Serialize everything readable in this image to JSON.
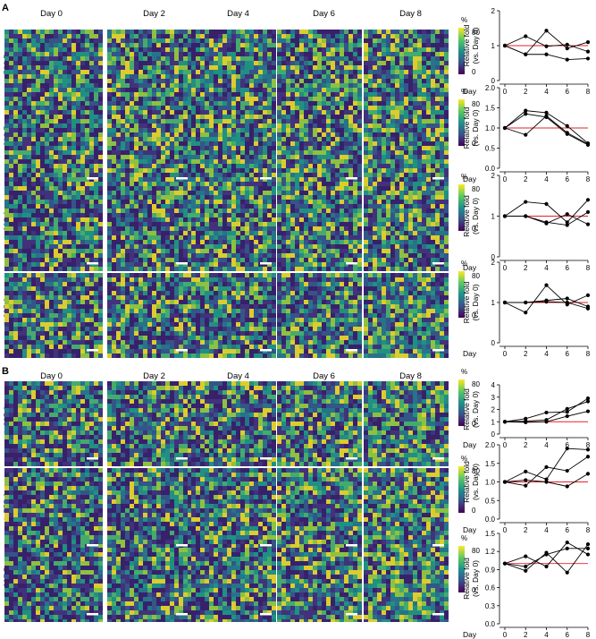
{
  "panels": [
    {
      "label": "A",
      "day_headers": [
        "Day 0",
        "Day 2",
        "Day 4",
        "Day 6",
        "Day 8"
      ],
      "rows": [
        {
          "mz": "766.5",
          "colorbar": {
            "unit": "%",
            "max_label": "80",
            "min_label": "0"
          }
        },
        {
          "mz": "810.5",
          "colorbar": {
            "unit": "%",
            "max_label": "80",
            "min_label": "0"
          }
        },
        {
          "mz": "838.6",
          "colorbar": {
            "unit": "%",
            "max_label": "80",
            "min_label": "0"
          }
        },
        {
          "mz": "885.6",
          "colorbar": {
            "unit": "%",
            "max_label": "80",
            "min_label": "0"
          }
        }
      ]
    },
    {
      "label": "B",
      "day_headers": [
        "Day 0",
        "Day 2",
        "Day 4",
        "Day 6",
        "Day 8"
      ],
      "rows": [
        {
          "mz": "865.6",
          "colorbar": {
            "unit": "%",
            "max_label": "80",
            "min_label": "0"
          }
        },
        {
          "mz": "775.6",
          "colorbar": {
            "unit": "%",
            "max_label": "80",
            "min_label": "0"
          }
        },
        {
          "mz": "837.5",
          "colorbar": {
            "unit": "%",
            "max_label": "80",
            "min_label": "0"
          }
        }
      ]
    }
  ],
  "mz_prefix": "m/z",
  "colors": {
    "viridis_dark": "#440154",
    "viridis_mid": "#21918c",
    "viridis_bright": "#fde725",
    "reference_line": "#e8202a",
    "series": "#000000"
  },
  "chart_data": [
    {
      "type": "line",
      "panel": "A",
      "mz": "766.5",
      "ylabel": "Relative fold (vs. Day 0)",
      "xlabel": "Day",
      "x": [
        0,
        2,
        4,
        6,
        8
      ],
      "ylim": [
        0,
        2
      ],
      "yticks": [
        "0",
        "1",
        "2"
      ],
      "xticks": [
        "0",
        "2",
        "4",
        "6",
        "8"
      ],
      "reference_y": 1,
      "series": [
        {
          "values": [
            1,
            1.27,
            0.98,
            1.03,
            0.83
          ]
        },
        {
          "values": [
            1,
            0.75,
            1.43,
            0.92,
            1.1
          ]
        },
        {
          "values": [
            1,
            0.75,
            0.75,
            0.6,
            0.63
          ]
        }
      ]
    },
    {
      "type": "line",
      "panel": "A",
      "mz": "810.5",
      "ylabel": "Relative fold (vs. Day 0)",
      "xlabel": "Day",
      "x": [
        0,
        2,
        4,
        6,
        8
      ],
      "ylim": [
        0,
        2
      ],
      "yticks": [
        "0.0",
        "0.5",
        "1.0",
        "1.5",
        "2.0"
      ],
      "xticks": [
        "0",
        "2",
        "4",
        "6",
        "8"
      ],
      "reference_y": 1,
      "series": [
        {
          "values": [
            1,
            1.43,
            1.38,
            1.05,
            0.62
          ]
        },
        {
          "values": [
            1,
            1.35,
            1.27,
            0.85,
            0.58
          ]
        },
        {
          "values": [
            1,
            0.83,
            1.3,
            0.88,
            0.6
          ]
        }
      ]
    },
    {
      "type": "line",
      "panel": "A",
      "mz": "838.6",
      "ylabel": "Relative fold (vs. Day 0)",
      "xlabel": "Day",
      "x": [
        0,
        2,
        4,
        6,
        8
      ],
      "ylim": [
        0,
        2
      ],
      "yticks": [
        "0",
        "1",
        "2"
      ],
      "xticks": [
        "0",
        "2",
        "4",
        "6",
        "8"
      ],
      "reference_y": 1,
      "series": [
        {
          "values": [
            1,
            1.35,
            1.3,
            0.85,
            1.4
          ]
        },
        {
          "values": [
            1,
            1.0,
            0.82,
            1.05,
            0.8
          ]
        },
        {
          "values": [
            1,
            1.0,
            0.85,
            0.78,
            1.1
          ]
        }
      ]
    },
    {
      "type": "line",
      "panel": "A",
      "mz": "885.6",
      "ylabel": "Relative fold (vs. Day 0)",
      "xlabel": "Day",
      "x": [
        0,
        2,
        4,
        6,
        8
      ],
      "ylim": [
        0,
        2
      ],
      "yticks": [
        "0",
        "1",
        "2"
      ],
      "xticks": [
        "0",
        "2",
        "4",
        "6",
        "8"
      ],
      "reference_y": 1,
      "series": [
        {
          "values": [
            1,
            0.75,
            1.43,
            0.95,
            1.18
          ]
        },
        {
          "values": [
            1,
            1.0,
            1.05,
            1.1,
            0.9
          ]
        },
        {
          "values": [
            1,
            1.0,
            1.02,
            1.0,
            0.85
          ]
        }
      ]
    },
    {
      "type": "line",
      "panel": "B",
      "mz": "865.6",
      "ylabel": "Relative fold (vs. Day 0)",
      "xlabel": "Day",
      "x": [
        0,
        2,
        4,
        6,
        8
      ],
      "ylim": [
        0,
        4
      ],
      "yticks": [
        "0",
        "1",
        "2",
        "3",
        "4"
      ],
      "xticks": [
        "0",
        "2",
        "4",
        "6",
        "8"
      ],
      "reference_y": 1,
      "series": [
        {
          "values": [
            1,
            1.25,
            1.75,
            1.8,
            2.9
          ]
        },
        {
          "values": [
            1,
            1.05,
            1.15,
            2.05,
            2.65
          ]
        },
        {
          "values": [
            1,
            0.95,
            1.0,
            1.45,
            1.85
          ]
        }
      ]
    },
    {
      "type": "line",
      "panel": "B",
      "mz": "775.6",
      "ylabel": "Relative fold (vs. Day 0)",
      "xlabel": "Day",
      "x": [
        0,
        2,
        4,
        6,
        8
      ],
      "ylim": [
        0,
        2
      ],
      "yticks": [
        "0.0",
        "0.5",
        "1.0",
        "1.5",
        "2.0"
      ],
      "xticks": [
        "0",
        "2",
        "4",
        "6",
        "8"
      ],
      "reference_y": 1,
      "series": [
        {
          "values": [
            1,
            1.28,
            1.07,
            1.9,
            1.87
          ]
        },
        {
          "values": [
            1,
            0.9,
            1.4,
            1.3,
            1.68
          ]
        },
        {
          "values": [
            1,
            1.05,
            1.0,
            0.88,
            1.22
          ]
        }
      ]
    },
    {
      "type": "line",
      "panel": "B",
      "mz": "837.5",
      "ylabel": "Relative fold (vs. Day 0)",
      "xlabel": "Day",
      "x": [
        0,
        2,
        4,
        6,
        8
      ],
      "ylim": [
        0,
        1.5
      ],
      "yticks": [
        "0.0",
        "0.3",
        "0.6",
        "0.9",
        "1.2",
        "1.5"
      ],
      "xticks": [
        "0",
        "2",
        "4",
        "6",
        "8"
      ],
      "reference_y": 1,
      "series": [
        {
          "values": [
            1,
            1.12,
            0.95,
            1.35,
            1.15
          ]
        },
        {
          "values": [
            1,
            0.95,
            1.15,
            1.25,
            1.25
          ]
        },
        {
          "values": [
            1,
            0.88,
            1.18,
            0.85,
            1.32
          ]
        }
      ]
    }
  ]
}
